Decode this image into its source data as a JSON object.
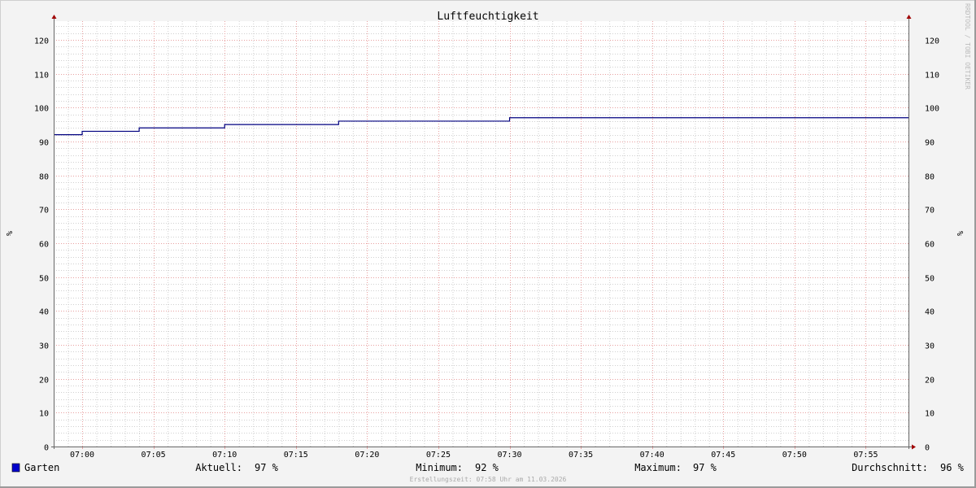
{
  "chart_data": {
    "type": "line",
    "title": "Luftfeuchtigkeit",
    "ylabel": "%",
    "ylabel_right": "%",
    "ylim": [
      0,
      125.5
    ],
    "yticks": [
      0,
      10,
      20,
      30,
      40,
      50,
      60,
      70,
      80,
      90,
      100,
      110,
      120
    ],
    "xlim": [
      "06:58",
      "07:58"
    ],
    "xticks": [
      "07:00",
      "07:05",
      "07:10",
      "07:15",
      "07:20",
      "07:25",
      "07:30",
      "07:35",
      "07:40",
      "07:45",
      "07:50",
      "07:55"
    ],
    "grid": true,
    "step": true,
    "series": [
      {
        "name": "Garten",
        "color": "#000080",
        "legend_color": "#0000cc",
        "points": [
          {
            "x": "06:58",
            "y": 92
          },
          {
            "x": "07:00",
            "y": 93
          },
          {
            "x": "07:04",
            "y": 94
          },
          {
            "x": "07:10",
            "y": 95
          },
          {
            "x": "07:18",
            "y": 96
          },
          {
            "x": "07:30",
            "y": 97
          },
          {
            "x": "07:58",
            "y": 97
          }
        ]
      }
    ],
    "legend": {
      "position": "bottom",
      "name": "Garten",
      "stats": [
        {
          "label": "Aktuell:",
          "value": "97 %"
        },
        {
          "label": "Minimum:",
          "value": "92 %"
        },
        {
          "label": "Maximum:",
          "value": "97 %"
        },
        {
          "label": "Durchschnitt:",
          "value": "96 %"
        }
      ]
    },
    "watermark": "RRDTOOL / TOBI OETIKER",
    "footer": "Erstellungszeit: 07:58 Uhr am 11.03.2026"
  }
}
